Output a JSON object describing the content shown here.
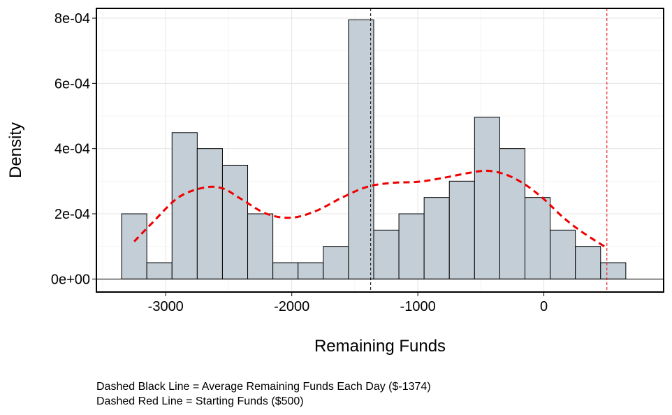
{
  "chart_data": {
    "type": "bar",
    "subtype": "histogram-with-density",
    "xlabel": "Remaining Funds",
    "ylabel": "Density",
    "xlim": [
      -3550,
      950
    ],
    "ylim": [
      -4e-05,
      0.00083
    ],
    "x_ticks": [
      -3000,
      -2000,
      -1000,
      0
    ],
    "x_tick_labels": [
      "-3000",
      "-2000",
      "-1000",
      "0"
    ],
    "y_ticks": [
      0,
      0.0002,
      0.0004,
      0.0006,
      0.0008
    ],
    "y_tick_labels": [
      "0e+00",
      "2e-04",
      "4e-04",
      "6e-04",
      "8e-04"
    ],
    "grid": true,
    "bin_width": 200,
    "bins": [
      {
        "start": -3350,
        "density": 0.0002
      },
      {
        "start": -3150,
        "density": 5e-05
      },
      {
        "start": -2950,
        "density": 0.000449
      },
      {
        "start": -2750,
        "density": 0.0004
      },
      {
        "start": -2550,
        "density": 0.000349
      },
      {
        "start": -2350,
        "density": 0.0002
      },
      {
        "start": -2150,
        "density": 5e-05
      },
      {
        "start": -1950,
        "density": 5e-05
      },
      {
        "start": -1750,
        "density": 0.0001
      },
      {
        "start": -1550,
        "density": 0.000795
      },
      {
        "start": -1350,
        "density": 0.00015
      },
      {
        "start": -1150,
        "density": 0.0002
      },
      {
        "start": -950,
        "density": 0.00025
      },
      {
        "start": -750,
        "density": 0.0003
      },
      {
        "start": -550,
        "density": 0.000496
      },
      {
        "start": -350,
        "density": 0.0004
      },
      {
        "start": -150,
        "density": 0.00025
      },
      {
        "start": 50,
        "density": 0.00015
      },
      {
        "start": 250,
        "density": 0.0001
      },
      {
        "start": 450,
        "density": 5e-05
      }
    ],
    "bar_fill": "#c4ced6",
    "bar_stroke": "#000000",
    "density_curve": {
      "color": "#ee0000",
      "points": [
        [
          -3250,
          0.000115
        ],
        [
          -3100,
          0.000175
        ],
        [
          -2900,
          0.00025
        ],
        [
          -2700,
          0.00028
        ],
        [
          -2550,
          0.000278
        ],
        [
          -2400,
          0.000245
        ],
        [
          -2200,
          0.0002
        ],
        [
          -2000,
          0.000188
        ],
        [
          -1800,
          0.00021
        ],
        [
          -1600,
          0.00025
        ],
        [
          -1400,
          0.000283
        ],
        [
          -1200,
          0.000295
        ],
        [
          -1000,
          0.000298
        ],
        [
          -800,
          0.00031
        ],
        [
          -600,
          0.000325
        ],
        [
          -450,
          0.000332
        ],
        [
          -300,
          0.00032
        ],
        [
          -150,
          0.00029
        ],
        [
          0,
          0.000245
        ],
        [
          150,
          0.00019
        ],
        [
          300,
          0.000145
        ],
        [
          500,
          9.5e-05
        ]
      ]
    },
    "reference_lines": [
      {
        "x": -1374,
        "color": "#000000",
        "style": "dashed"
      },
      {
        "x": 500,
        "color": "#ee0000",
        "style": "dashed"
      }
    ],
    "annotations": [
      "Dashed Black Line = Average Remaining Funds Each Day ($-1374)",
      "Dashed Red Line = Starting Funds ($500)"
    ]
  }
}
